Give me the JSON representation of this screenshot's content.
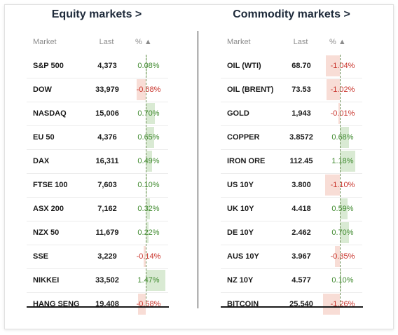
{
  "equity": {
    "title": "Equity markets >",
    "headers": {
      "market": "Market",
      "last": "Last",
      "pct": "% ▲"
    },
    "rows": [
      {
        "name": "S&P 500",
        "last": "4,373",
        "pct": "0.08%",
        "value": 0.08
      },
      {
        "name": "DOW",
        "last": "33,979",
        "pct": "-0.68%",
        "value": -0.68
      },
      {
        "name": "NASDAQ",
        "last": "15,006",
        "pct": "0.70%",
        "value": 0.7
      },
      {
        "name": "EU 50",
        "last": "4,376",
        "pct": "0.65%",
        "value": 0.65
      },
      {
        "name": "DAX",
        "last": "16,311",
        "pct": "0.49%",
        "value": 0.49
      },
      {
        "name": "FTSE 100",
        "last": "7,603",
        "pct": "0.10%",
        "value": 0.1
      },
      {
        "name": "ASX 200",
        "last": "7,162",
        "pct": "0.32%",
        "value": 0.32
      },
      {
        "name": "NZX 50",
        "last": "11,679",
        "pct": "0.22%",
        "value": 0.22
      },
      {
        "name": "SSE",
        "last": "3,229",
        "pct": "-0.14%",
        "value": -0.14
      },
      {
        "name": "NIKKEI",
        "last": "33,502",
        "pct": "1.47%",
        "value": 1.47
      },
      {
        "name": "HANG SENG",
        "last": "19,408",
        "pct": "-0.58%",
        "value": -0.58
      }
    ]
  },
  "commodity": {
    "title": "Commodity markets >",
    "headers": {
      "market": "Market",
      "last": "Last",
      "pct": "% ▲"
    },
    "rows": [
      {
        "name": "OIL (WTI)",
        "last": "68.70",
        "pct": "-1.04%",
        "value": -1.04
      },
      {
        "name": "OIL (BRENT)",
        "last": "73.53",
        "pct": "-1.02%",
        "value": -1.02
      },
      {
        "name": "GOLD",
        "last": "1,943",
        "pct": "-0.01%",
        "value": -0.01
      },
      {
        "name": "COPPER",
        "last": "3.8572",
        "pct": "0.68%",
        "value": 0.68
      },
      {
        "name": "IRON ORE",
        "last": "112.45",
        "pct": "1.18%",
        "value": 1.18
      },
      {
        "name": "US 10Y",
        "last": "3.800",
        "pct": "-1.10%",
        "value": -1.1
      },
      {
        "name": "UK 10Y",
        "last": "4.418",
        "pct": "0.59%",
        "value": 0.59
      },
      {
        "name": "DE 10Y",
        "last": "2.462",
        "pct": "0.70%",
        "value": 0.7
      },
      {
        "name": "AUS 10Y",
        "last": "3.967",
        "pct": "-0.35%",
        "value": -0.35
      },
      {
        "name": "NZ 10Y",
        "last": "4.577",
        "pct": "0.10%",
        "value": 0.1
      },
      {
        "name": "BITCOIN",
        "last": "25,540",
        "pct": "-1.26%",
        "value": -1.26
      }
    ]
  },
  "colors": {
    "positive": "#3f8a2e",
    "negative": "#c8322a",
    "positive_bg": "#d9ead3",
    "negative_bg": "#f8ddd6"
  }
}
